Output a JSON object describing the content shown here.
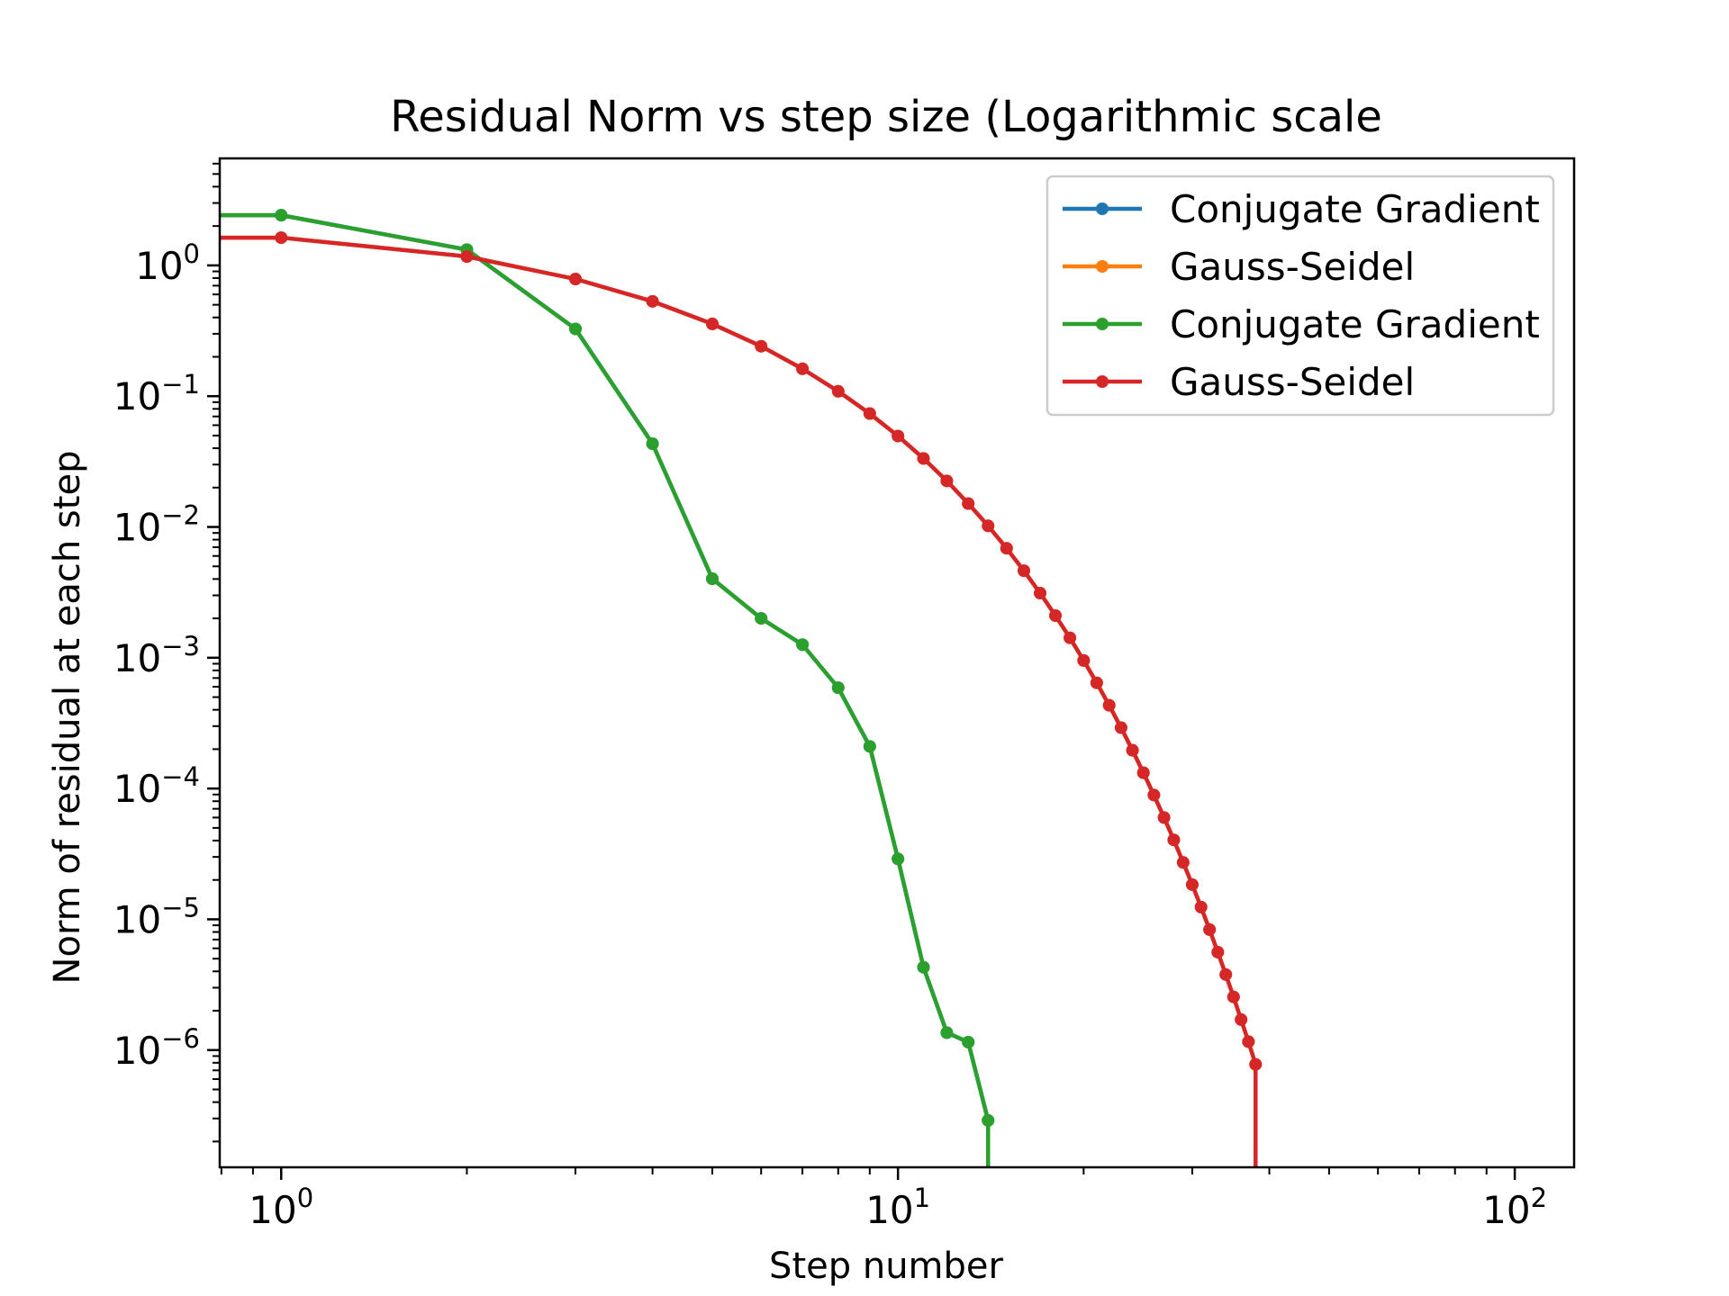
{
  "chart_data": {
    "type": "line",
    "title": "Residual Norm vs step size (Logarithmic scale",
    "xlabel": "Step number",
    "ylabel": "Norm of residual at each step",
    "xscale": "log",
    "yscale": "log",
    "xlim": [
      0.795,
      124.8
    ],
    "ylim": [
      1.27e-07,
      6.58
    ],
    "grid": false,
    "legend_position": "top-right",
    "x_ticks": [
      {
        "value": 1,
        "base": "10",
        "exp": "0"
      },
      {
        "value": 10,
        "base": "10",
        "exp": "1"
      },
      {
        "value": 100,
        "base": "10",
        "exp": "2"
      }
    ],
    "y_ticks": [
      {
        "value": 1,
        "base": "10",
        "exp": "0"
      },
      {
        "value": 0.1,
        "base": "10",
        "exp": "−1"
      },
      {
        "value": 0.01,
        "base": "10",
        "exp": "−2"
      },
      {
        "value": 0.001,
        "base": "10",
        "exp": "−3"
      },
      {
        "value": 0.0001,
        "base": "10",
        "exp": "−4"
      },
      {
        "value": 1e-05,
        "base": "10",
        "exp": "−5"
      },
      {
        "value": 1e-06,
        "base": "10",
        "exp": "−6"
      }
    ],
    "series": [
      {
        "name": "Conjugate Gradient",
        "color": "#1f77b4",
        "x": [
          0,
          1,
          2,
          3,
          4,
          5,
          6,
          7,
          8,
          9,
          10,
          11,
          12,
          13,
          14,
          15
        ],
        "y": [
          2.42,
          2.42,
          1.32,
          0.327,
          0.0433,
          0.00402,
          0.002,
          0.00126,
          0.00059,
          0.00021,
          2.9e-05,
          4.3e-06,
          1.36e-06,
          1.15e-06,
          2.9e-07,
          0
        ]
      },
      {
        "name": "Gauss-Seidel",
        "color": "#ff7f0e",
        "x": [
          0,
          1,
          2,
          3,
          4,
          5,
          6,
          7,
          8,
          9,
          10,
          11,
          12,
          13,
          14,
          15,
          16,
          17,
          18,
          19,
          20,
          21,
          22,
          23,
          24,
          25,
          26,
          27,
          28,
          29,
          30,
          31,
          32,
          33,
          34,
          35,
          36,
          37,
          38,
          39
        ],
        "y": [
          1.63,
          1.63,
          1.17,
          0.787,
          0.531,
          0.357,
          0.241,
          0.162,
          0.109,
          0.0736,
          0.0496,
          0.0334,
          0.0225,
          0.0151,
          0.0102,
          0.00687,
          0.00463,
          0.00312,
          0.0021,
          0.00142,
          0.000953,
          0.000643,
          0.000433,
          0.000292,
          0.000196,
          0.000132,
          8.91e-05,
          6e-05,
          4.05e-05,
          2.72e-05,
          1.84e-05,
          1.24e-05,
          8.34e-06,
          5.61e-06,
          3.78e-06,
          2.55e-06,
          1.71e-06,
          1.16e-06,
          7.78e-07,
          0
        ]
      },
      {
        "name": "Conjugate Gradient",
        "color": "#2ca02c",
        "x": [
          0,
          1,
          2,
          3,
          4,
          5,
          6,
          7,
          8,
          9,
          10,
          11,
          12,
          13,
          14,
          15
        ],
        "y": [
          2.42,
          2.42,
          1.32,
          0.327,
          0.0433,
          0.00402,
          0.002,
          0.00126,
          0.00059,
          0.00021,
          2.9e-05,
          4.3e-06,
          1.36e-06,
          1.15e-06,
          2.9e-07,
          0
        ]
      },
      {
        "name": "Gauss-Seidel",
        "color": "#d62728",
        "x": [
          0,
          1,
          2,
          3,
          4,
          5,
          6,
          7,
          8,
          9,
          10,
          11,
          12,
          13,
          14,
          15,
          16,
          17,
          18,
          19,
          20,
          21,
          22,
          23,
          24,
          25,
          26,
          27,
          28,
          29,
          30,
          31,
          32,
          33,
          34,
          35,
          36,
          37,
          38,
          39
        ],
        "y": [
          1.63,
          1.63,
          1.17,
          0.787,
          0.531,
          0.357,
          0.241,
          0.162,
          0.109,
          0.0736,
          0.0496,
          0.0334,
          0.0225,
          0.0151,
          0.0102,
          0.00687,
          0.00463,
          0.00312,
          0.0021,
          0.00142,
          0.000953,
          0.000643,
          0.000433,
          0.000292,
          0.000196,
          0.000132,
          8.91e-05,
          6e-05,
          4.05e-05,
          2.72e-05,
          1.84e-05,
          1.24e-05,
          8.34e-06,
          5.61e-06,
          3.78e-06,
          2.55e-06,
          1.71e-06,
          1.16e-06,
          7.78e-07,
          0
        ]
      }
    ]
  }
}
